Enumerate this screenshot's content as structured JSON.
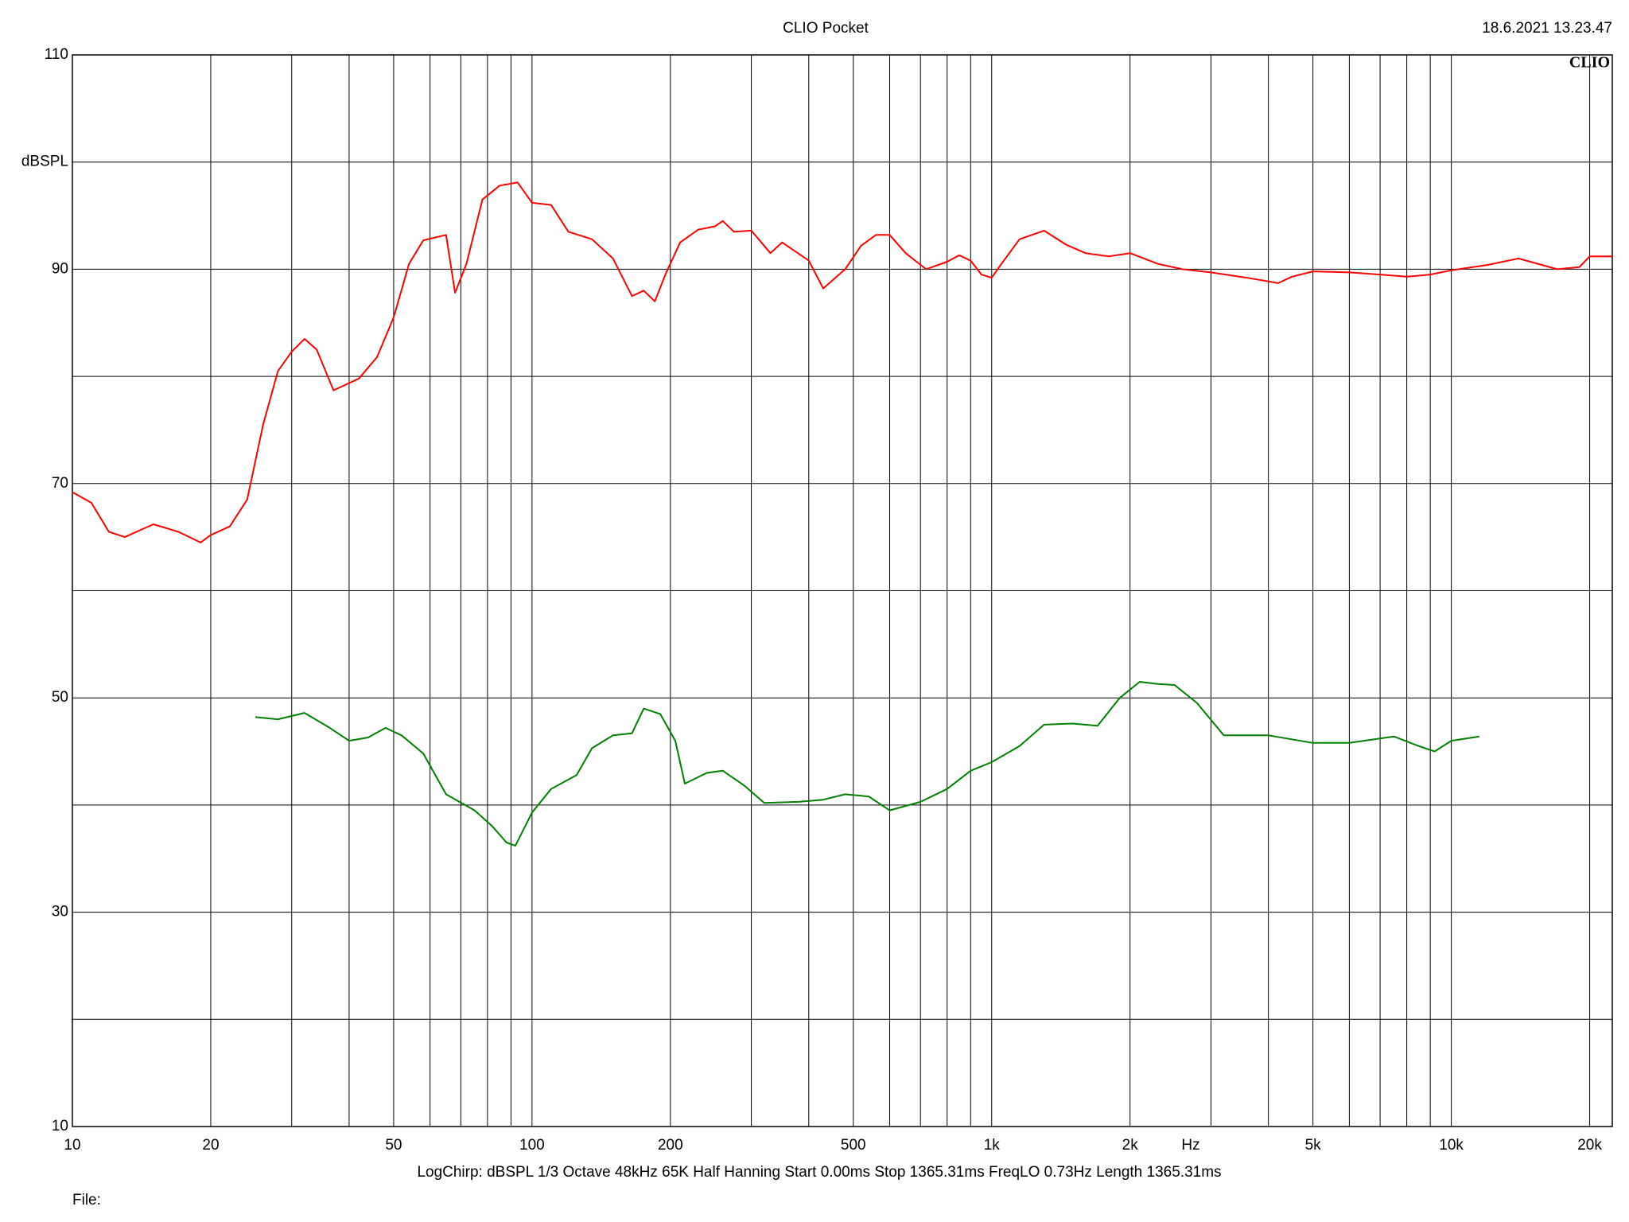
{
  "chart_data": {
    "type": "line",
    "title": "CLIO Pocket",
    "timestamp": "18.6.2021 13.23.47",
    "logo": "CLIO",
    "ylabel": "dBSPL",
    "xlabel": "Hz",
    "settings_line": "LogChirp:  dBSPL   1/3 Octave   48kHz   65K   Half Hanning   Start 0.00ms    Stop 1365.31ms    FreqLO 0.73Hz    Length 1365.31ms",
    "file_label": "File:",
    "xscale": "log",
    "grid": true,
    "xlim": [
      10,
      22400
    ],
    "ylim": [
      10,
      110
    ],
    "yticks": [
      10,
      30,
      50,
      70,
      90,
      110
    ],
    "yminor": [
      20,
      40,
      60,
      80,
      100
    ],
    "xticks": [
      10,
      20,
      50,
      100,
      200,
      500,
      {
        "value": 1000,
        "label": "1k"
      },
      {
        "value": 2000,
        "label": "2k"
      },
      {
        "value": 5000,
        "label": "5k"
      },
      {
        "value": 10000,
        "label": "10k"
      },
      {
        "value": 20000,
        "label": "20k"
      }
    ],
    "xminor": [
      30,
      40,
      60,
      70,
      80,
      90,
      300,
      400,
      600,
      700,
      800,
      900,
      3000,
      4000,
      6000,
      7000,
      8000,
      9000
    ],
    "series": [
      {
        "color": "#ff0000",
        "x": [
          10,
          11,
          12,
          13,
          15,
          17,
          19,
          20,
          22,
          24,
          26,
          28,
          30,
          32,
          34,
          37,
          42,
          46,
          50,
          54,
          58,
          65,
          68,
          72,
          78,
          85,
          93,
          100,
          110,
          120,
          135,
          150,
          165,
          175,
          185,
          195,
          210,
          230,
          250,
          260,
          275,
          300,
          330,
          350,
          400,
          430,
          480,
          520,
          560,
          600,
          650,
          720,
          800,
          850,
          900,
          950,
          1000,
          1050,
          1150,
          1300,
          1450,
          1600,
          1800,
          2000,
          2300,
          2600,
          3000,
          3600,
          4200,
          4500,
          5000,
          6000,
          7000,
          8000,
          9000,
          10000,
          12000,
          14000,
          17000,
          19000,
          20000,
          22400
        ],
        "values": [
          69.2,
          68.2,
          65.5,
          65,
          66.2,
          65.5,
          64.5,
          65.2,
          66,
          68.5,
          75.5,
          80.5,
          82.3,
          83.5,
          82.5,
          78.7,
          79.8,
          81.8,
          85.5,
          90.5,
          92.7,
          93.2,
          87.8,
          90.5,
          96.5,
          97.8,
          98.1,
          96.2,
          96,
          93.5,
          92.8,
          91,
          87.5,
          88,
          87,
          89.5,
          92.5,
          93.7,
          94,
          94.5,
          93.5,
          93.6,
          91.5,
          92.5,
          90.8,
          88.2,
          90,
          92.2,
          93.2,
          93.2,
          91.5,
          90,
          90.7,
          91.3,
          90.8,
          89.5,
          89.2,
          90.5,
          92.8,
          93.6,
          92.3,
          91.5,
          91.2,
          91.5,
          90.5,
          90,
          89.7,
          89.2,
          88.7,
          89.3,
          89.8,
          89.7,
          89.5,
          89.3,
          89.5,
          89.9,
          90.4,
          91,
          90,
          90.2,
          91.2,
          91.2
        ]
      },
      {
        "color": "#008000",
        "x": [
          25,
          28,
          32,
          36,
          40,
          44,
          48,
          52,
          58,
          65,
          75,
          82,
          88,
          92,
          100,
          110,
          125,
          135,
          150,
          165,
          175,
          190,
          205,
          215,
          240,
          260,
          290,
          320,
          380,
          430,
          480,
          540,
          600,
          700,
          800,
          900,
          1000,
          1150,
          1300,
          1500,
          1700,
          1900,
          2100,
          2300,
          2500,
          2800,
          3200,
          4000,
          5000,
          6000,
          7500,
          8500,
          9200,
          10000,
          11500
        ],
        "values": [
          48.2,
          48,
          48.6,
          47.3,
          46,
          46.3,
          47.2,
          46.5,
          44.8,
          41,
          39.5,
          38,
          36.5,
          36.2,
          39.3,
          41.5,
          42.8,
          45.3,
          46.5,
          46.7,
          49,
          48.5,
          46,
          42,
          43,
          43.2,
          41.8,
          40.2,
          40.3,
          40.5,
          41,
          40.8,
          39.5,
          40.3,
          41.5,
          43.2,
          44,
          45.5,
          47.5,
          47.6,
          47.4,
          50,
          51.5,
          51.3,
          51.2,
          49.5,
          46.5,
          46.5,
          45.8,
          45.8,
          46.4,
          45.5,
          45,
          46,
          46.4
        ]
      }
    ]
  }
}
